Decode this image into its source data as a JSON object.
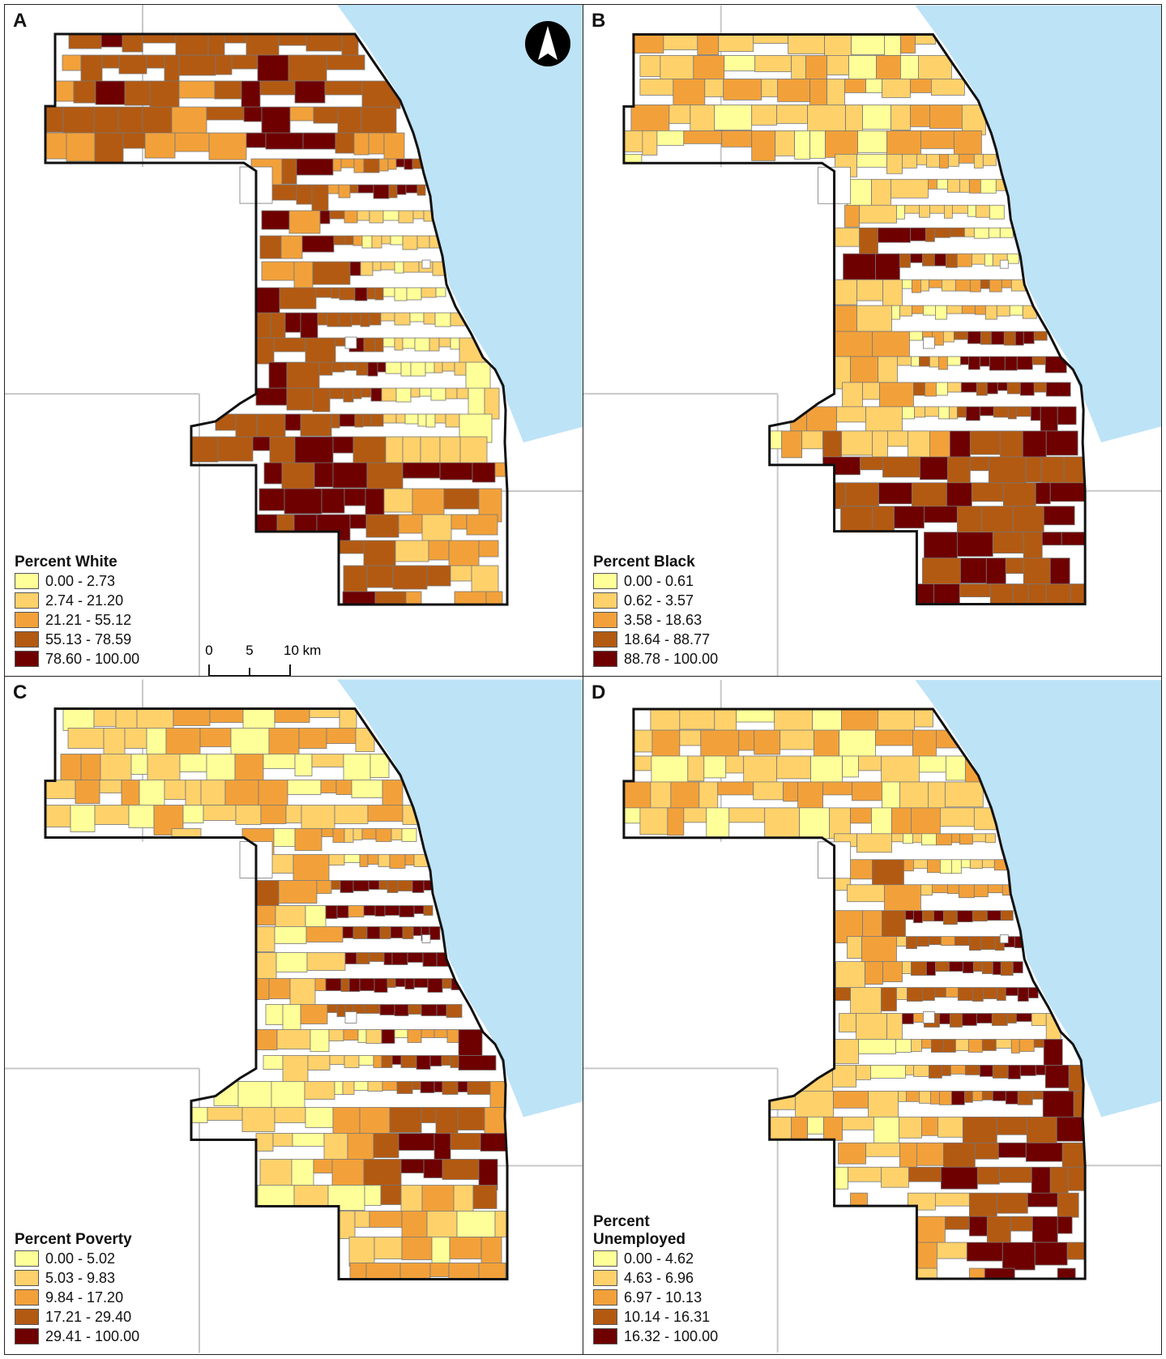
{
  "colors": {
    "class1": "#ffff99",
    "class2": "#fed16b",
    "class3": "#f2a13a",
    "class4": "#b35a12",
    "class5": "#6e0000",
    "lake": "#bde3f7",
    "outline": "#111111",
    "boundary": "#c8c8c8"
  },
  "panels": [
    {
      "letter": "A",
      "legend_title": "Percent White",
      "classes": [
        "0.00 - 2.73",
        "2.74 - 21.20",
        "21.21 - 55.12",
        "55.13 - 78.59",
        "78.60 - 100.00"
      ]
    },
    {
      "letter": "B",
      "legend_title": "Percent Black",
      "classes": [
        "0.00 - 0.61",
        "0.62 - 3.57",
        "3.58 - 18.63",
        "18.64 - 88.77",
        "88.78 - 100.00"
      ]
    },
    {
      "letter": "C",
      "legend_title": "Percent Poverty",
      "classes": [
        "0.00 - 5.02",
        "5.03 - 9.83",
        "9.84 - 17.20",
        "17.21 - 29.40",
        "29.41 - 100.00"
      ]
    },
    {
      "letter": "D",
      "legend_title": "Percent\nUnemployed",
      "classes": [
        "0.00 - 4.62",
        "4.63 - 6.96",
        "6.97 - 10.13",
        "10.14 - 16.31",
        "16.32 - 100.00"
      ]
    }
  ],
  "scalebar": {
    "ticks": [
      "0",
      "5",
      "10 km"
    ]
  },
  "north_arrow": "north-arrow-icon"
}
